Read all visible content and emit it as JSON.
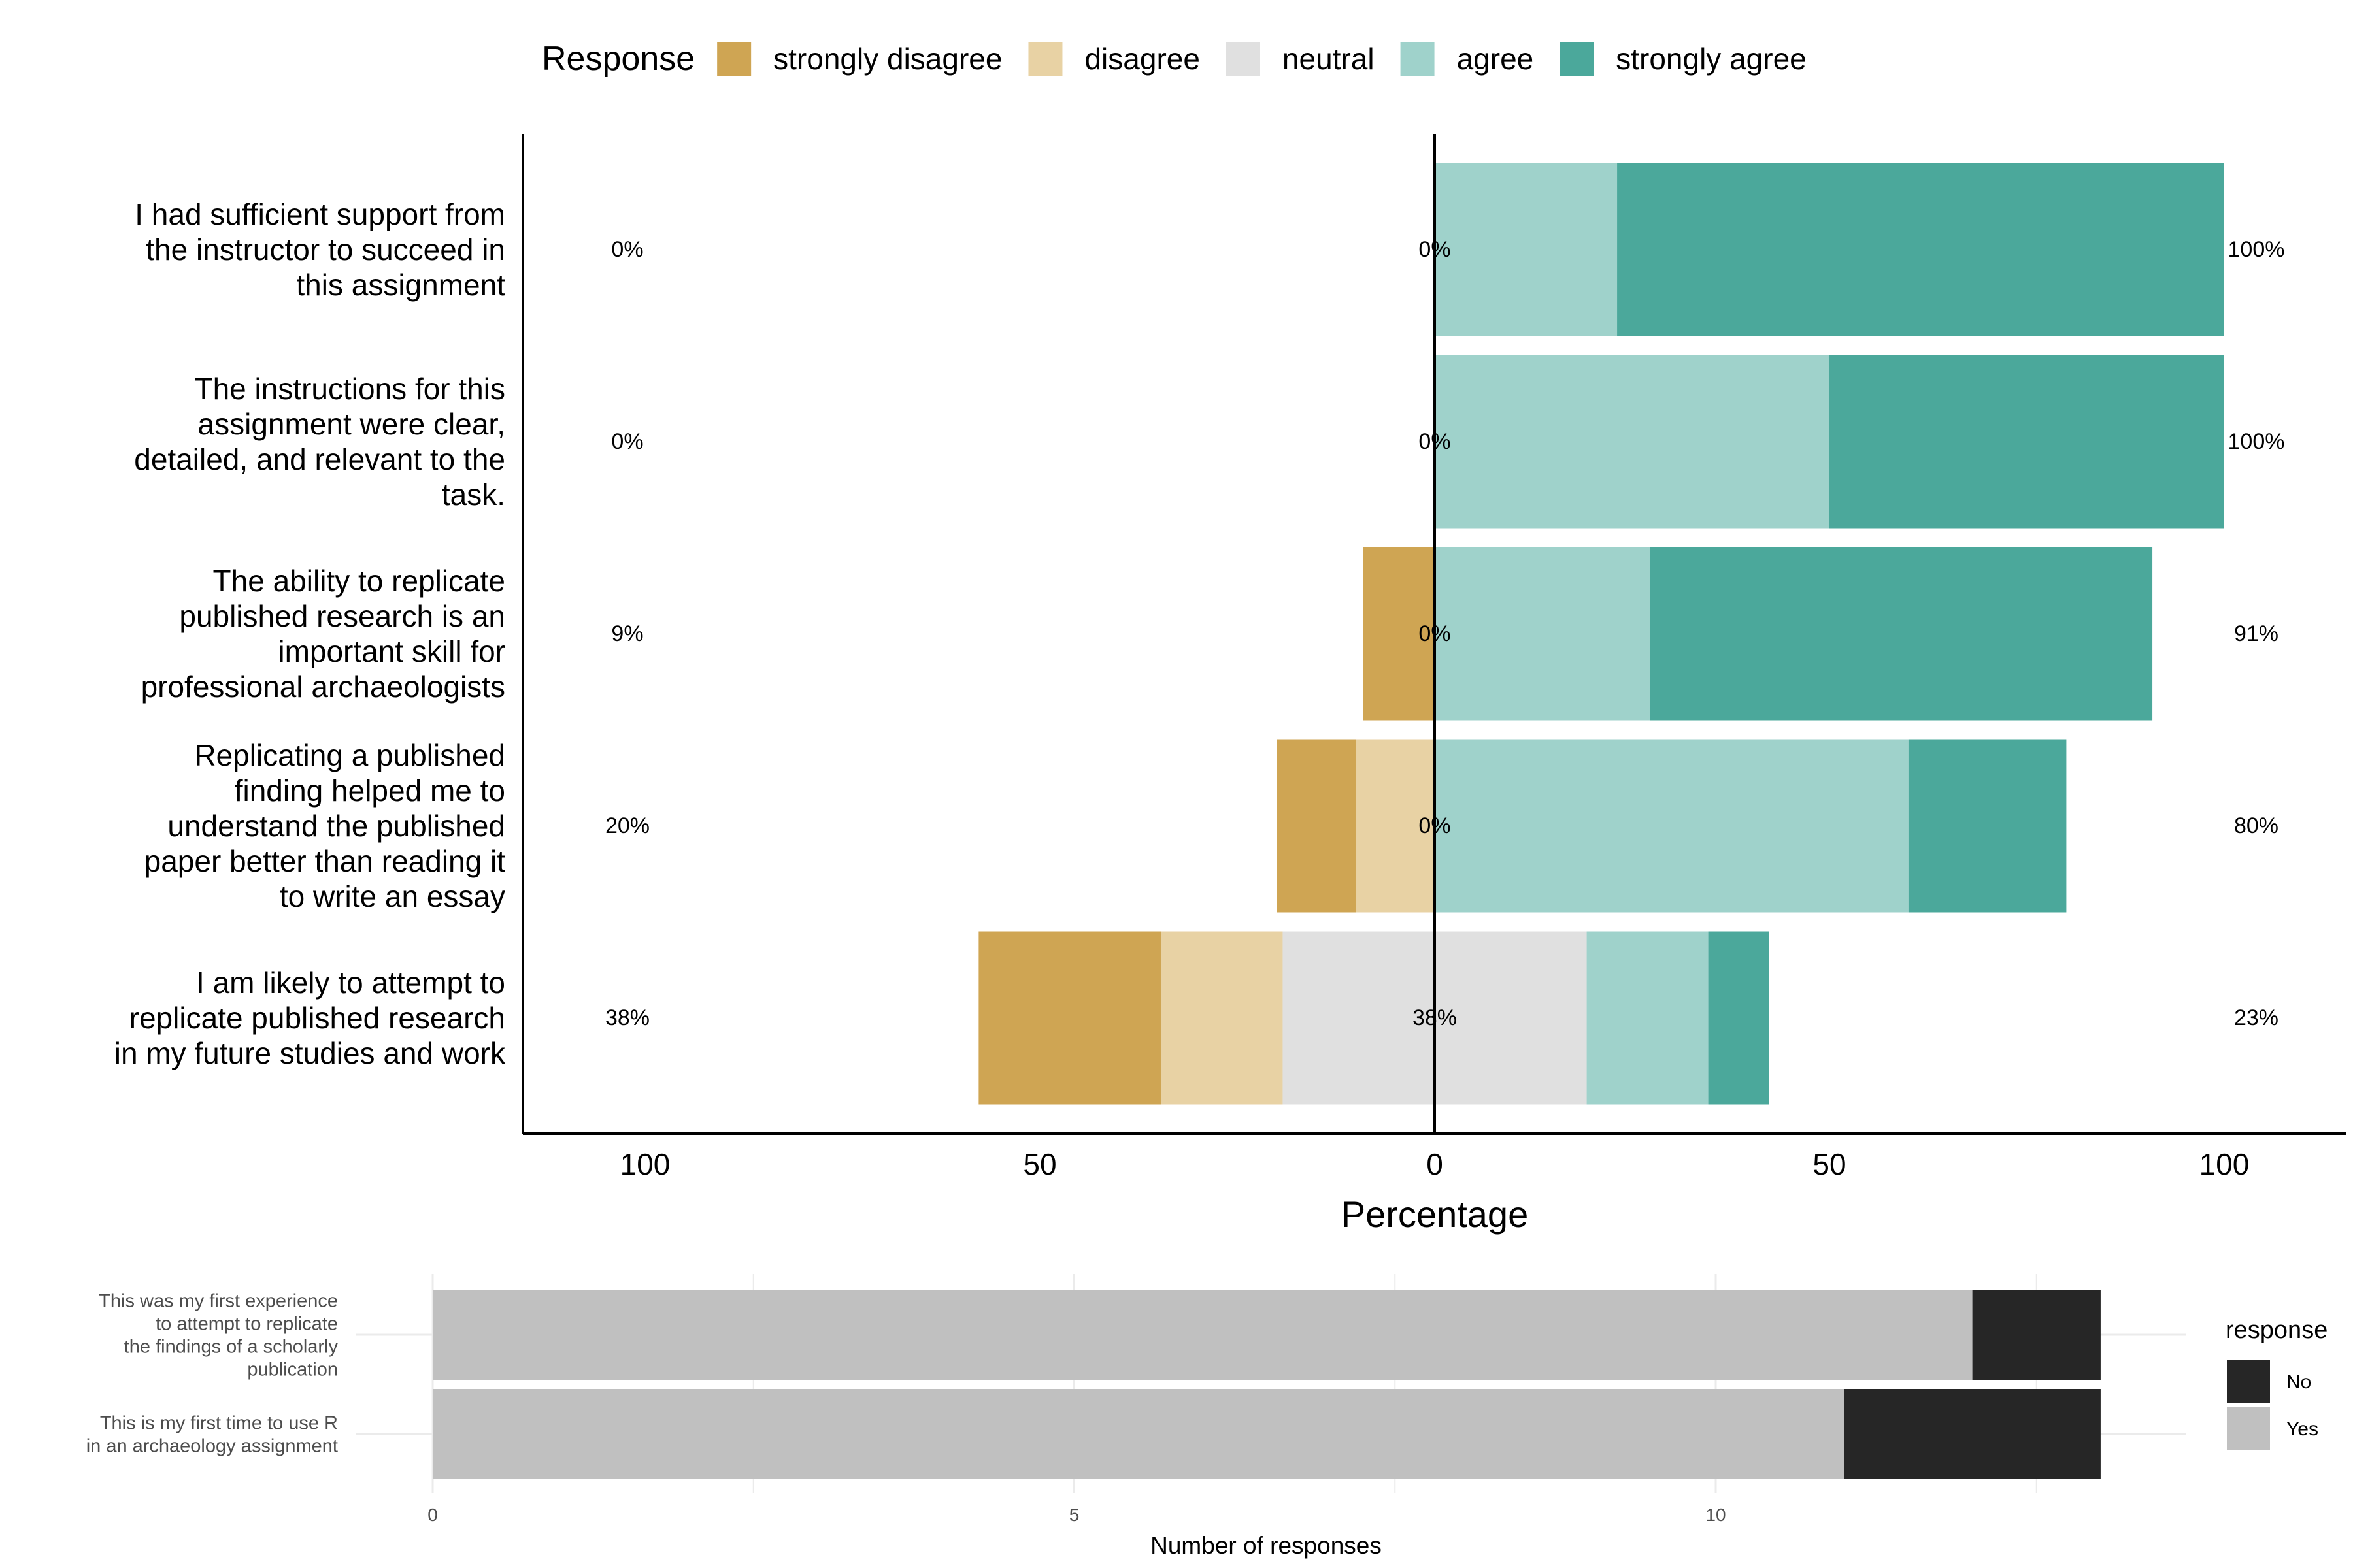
{
  "chart_data": [
    {
      "type": "bar",
      "orientation": "horizontal",
      "stacked": true,
      "diverging": true,
      "legend": {
        "title": "Response",
        "placement": "top",
        "entries": [
          "strongly disagree",
          "disagree",
          "neutral",
          "agree",
          "strongly agree"
        ]
      },
      "colors": {
        "strongly disagree": "#CFA553",
        "disagree": "#E8D2A4",
        "neutral": "#E0E0E0",
        "agree": "#9FD2CB",
        "strongly agree": "#4BA89B"
      },
      "xlabel": "Percentage",
      "xticks": [
        -100,
        -50,
        0,
        50,
        100
      ],
      "xtick_labels": [
        "100",
        "50",
        "0",
        "50",
        "100"
      ],
      "xlim": [
        -116,
        116
      ],
      "categories": [
        "I had sufficient support from the instructor to succeed in this assignment",
        "The instructions for this assignment were clear, detailed, and relevant to the task.",
        "The ability to replicate published research is an important skill for professional archaeologists",
        "Replicating a published finding helped me to understand the published paper better than reading it to write an essay",
        "I am likely to attempt to replicate published research in my future studies and work"
      ],
      "category_lines": [
        [
          "I had sufficient support from",
          "the instructor to succeed in",
          "this assignment"
        ],
        [
          "The instructions for this",
          "assignment were clear,",
          "detailed, and relevant to the",
          "task."
        ],
        [
          "The ability to replicate",
          "published research is an",
          "important skill for",
          "professional archaeologists"
        ],
        [
          "Replicating a published",
          "finding helped me to",
          "understand the published",
          "paper better than reading it",
          "to write an essay"
        ],
        [
          "I am likely to attempt to",
          "replicate published research",
          "in my future studies and work"
        ]
      ],
      "series": [
        {
          "name": "strongly disagree",
          "values": [
            0,
            0,
            9.1,
            10,
            23.1
          ]
        },
        {
          "name": "disagree",
          "values": [
            0,
            0,
            0,
            10,
            15.4
          ]
        },
        {
          "name": "neutral",
          "values": [
            0,
            0,
            0,
            0,
            38.5
          ]
        },
        {
          "name": "agree",
          "values": [
            23.1,
            50,
            27.3,
            60,
            15.4
          ]
        },
        {
          "name": "strongly agree",
          "values": [
            76.9,
            50,
            63.6,
            20,
            7.7
          ]
        }
      ],
      "summary_labels": {
        "left": [
          "0%",
          "0%",
          "9%",
          "20%",
          "38%"
        ],
        "center": [
          "0%",
          "0%",
          "0%",
          "0%",
          "38%"
        ],
        "right": [
          "100%",
          "100%",
          "91%",
          "80%",
          "23%"
        ]
      }
    },
    {
      "type": "bar",
      "orientation": "horizontal",
      "stacked": true,
      "xlabel": "Number of responses",
      "xticks": [
        0,
        5,
        10
      ],
      "xlim": [
        0,
        13.6
      ],
      "categories": [
        "This was my first experience to attempt to replicate the findings of a scholarly publication",
        "This is my first time to use R in an archaeology assignment"
      ],
      "category_lines": [
        [
          "This was my first experience",
          "to attempt to replicate",
          "the findings of a scholarly",
          "publication"
        ],
        [
          "This is my first time to use R",
          "in an archaeology assignment"
        ]
      ],
      "series": [
        {
          "name": "Yes",
          "values": [
            12,
            11
          ]
        },
        {
          "name": "No",
          "values": [
            1,
            2
          ]
        }
      ],
      "legend": {
        "title": "response",
        "placement": "right",
        "entries": [
          "No",
          "Yes"
        ]
      },
      "colors": {
        "Yes": "#C0C0C0",
        "No": "#262626"
      }
    }
  ]
}
